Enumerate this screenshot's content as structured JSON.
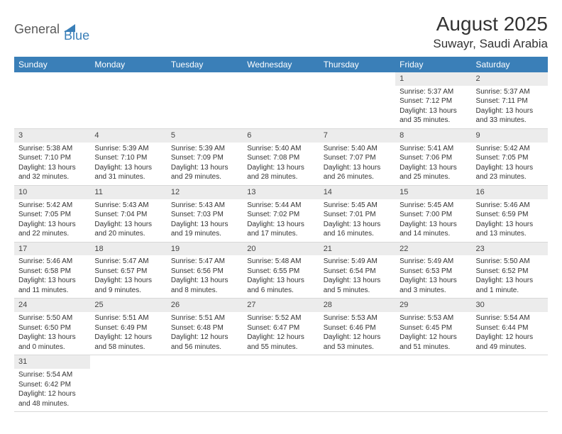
{
  "logo": {
    "part1": "General",
    "part2": "Blue"
  },
  "title": "August 2025",
  "location": "Suwayr, Saudi Arabia",
  "colors": {
    "header_bg": "#3a7fb8",
    "header_text": "#ffffff",
    "daynum_bg": "#ececec",
    "border": "#d8d8d8",
    "text": "#333333"
  },
  "day_labels": [
    "Sunday",
    "Monday",
    "Tuesday",
    "Wednesday",
    "Thursday",
    "Friday",
    "Saturday"
  ],
  "weeks": [
    [
      null,
      null,
      null,
      null,
      null,
      {
        "n": "1",
        "sr": "Sunrise: 5:37 AM",
        "ss": "Sunset: 7:12 PM",
        "dl": "Daylight: 13 hours and 35 minutes."
      },
      {
        "n": "2",
        "sr": "Sunrise: 5:37 AM",
        "ss": "Sunset: 7:11 PM",
        "dl": "Daylight: 13 hours and 33 minutes."
      }
    ],
    [
      {
        "n": "3",
        "sr": "Sunrise: 5:38 AM",
        "ss": "Sunset: 7:10 PM",
        "dl": "Daylight: 13 hours and 32 minutes."
      },
      {
        "n": "4",
        "sr": "Sunrise: 5:39 AM",
        "ss": "Sunset: 7:10 PM",
        "dl": "Daylight: 13 hours and 31 minutes."
      },
      {
        "n": "5",
        "sr": "Sunrise: 5:39 AM",
        "ss": "Sunset: 7:09 PM",
        "dl": "Daylight: 13 hours and 29 minutes."
      },
      {
        "n": "6",
        "sr": "Sunrise: 5:40 AM",
        "ss": "Sunset: 7:08 PM",
        "dl": "Daylight: 13 hours and 28 minutes."
      },
      {
        "n": "7",
        "sr": "Sunrise: 5:40 AM",
        "ss": "Sunset: 7:07 PM",
        "dl": "Daylight: 13 hours and 26 minutes."
      },
      {
        "n": "8",
        "sr": "Sunrise: 5:41 AM",
        "ss": "Sunset: 7:06 PM",
        "dl": "Daylight: 13 hours and 25 minutes."
      },
      {
        "n": "9",
        "sr": "Sunrise: 5:42 AM",
        "ss": "Sunset: 7:05 PM",
        "dl": "Daylight: 13 hours and 23 minutes."
      }
    ],
    [
      {
        "n": "10",
        "sr": "Sunrise: 5:42 AM",
        "ss": "Sunset: 7:05 PM",
        "dl": "Daylight: 13 hours and 22 minutes."
      },
      {
        "n": "11",
        "sr": "Sunrise: 5:43 AM",
        "ss": "Sunset: 7:04 PM",
        "dl": "Daylight: 13 hours and 20 minutes."
      },
      {
        "n": "12",
        "sr": "Sunrise: 5:43 AM",
        "ss": "Sunset: 7:03 PM",
        "dl": "Daylight: 13 hours and 19 minutes."
      },
      {
        "n": "13",
        "sr": "Sunrise: 5:44 AM",
        "ss": "Sunset: 7:02 PM",
        "dl": "Daylight: 13 hours and 17 minutes."
      },
      {
        "n": "14",
        "sr": "Sunrise: 5:45 AM",
        "ss": "Sunset: 7:01 PM",
        "dl": "Daylight: 13 hours and 16 minutes."
      },
      {
        "n": "15",
        "sr": "Sunrise: 5:45 AM",
        "ss": "Sunset: 7:00 PM",
        "dl": "Daylight: 13 hours and 14 minutes."
      },
      {
        "n": "16",
        "sr": "Sunrise: 5:46 AM",
        "ss": "Sunset: 6:59 PM",
        "dl": "Daylight: 13 hours and 13 minutes."
      }
    ],
    [
      {
        "n": "17",
        "sr": "Sunrise: 5:46 AM",
        "ss": "Sunset: 6:58 PM",
        "dl": "Daylight: 13 hours and 11 minutes."
      },
      {
        "n": "18",
        "sr": "Sunrise: 5:47 AM",
        "ss": "Sunset: 6:57 PM",
        "dl": "Daylight: 13 hours and 9 minutes."
      },
      {
        "n": "19",
        "sr": "Sunrise: 5:47 AM",
        "ss": "Sunset: 6:56 PM",
        "dl": "Daylight: 13 hours and 8 minutes."
      },
      {
        "n": "20",
        "sr": "Sunrise: 5:48 AM",
        "ss": "Sunset: 6:55 PM",
        "dl": "Daylight: 13 hours and 6 minutes."
      },
      {
        "n": "21",
        "sr": "Sunrise: 5:49 AM",
        "ss": "Sunset: 6:54 PM",
        "dl": "Daylight: 13 hours and 5 minutes."
      },
      {
        "n": "22",
        "sr": "Sunrise: 5:49 AM",
        "ss": "Sunset: 6:53 PM",
        "dl": "Daylight: 13 hours and 3 minutes."
      },
      {
        "n": "23",
        "sr": "Sunrise: 5:50 AM",
        "ss": "Sunset: 6:52 PM",
        "dl": "Daylight: 13 hours and 1 minute."
      }
    ],
    [
      {
        "n": "24",
        "sr": "Sunrise: 5:50 AM",
        "ss": "Sunset: 6:50 PM",
        "dl": "Daylight: 13 hours and 0 minutes."
      },
      {
        "n": "25",
        "sr": "Sunrise: 5:51 AM",
        "ss": "Sunset: 6:49 PM",
        "dl": "Daylight: 12 hours and 58 minutes."
      },
      {
        "n": "26",
        "sr": "Sunrise: 5:51 AM",
        "ss": "Sunset: 6:48 PM",
        "dl": "Daylight: 12 hours and 56 minutes."
      },
      {
        "n": "27",
        "sr": "Sunrise: 5:52 AM",
        "ss": "Sunset: 6:47 PM",
        "dl": "Daylight: 12 hours and 55 minutes."
      },
      {
        "n": "28",
        "sr": "Sunrise: 5:53 AM",
        "ss": "Sunset: 6:46 PM",
        "dl": "Daylight: 12 hours and 53 minutes."
      },
      {
        "n": "29",
        "sr": "Sunrise: 5:53 AM",
        "ss": "Sunset: 6:45 PM",
        "dl": "Daylight: 12 hours and 51 minutes."
      },
      {
        "n": "30",
        "sr": "Sunrise: 5:54 AM",
        "ss": "Sunset: 6:44 PM",
        "dl": "Daylight: 12 hours and 49 minutes."
      }
    ],
    [
      {
        "n": "31",
        "sr": "Sunrise: 5:54 AM",
        "ss": "Sunset: 6:42 PM",
        "dl": "Daylight: 12 hours and 48 minutes."
      },
      null,
      null,
      null,
      null,
      null,
      null
    ]
  ]
}
